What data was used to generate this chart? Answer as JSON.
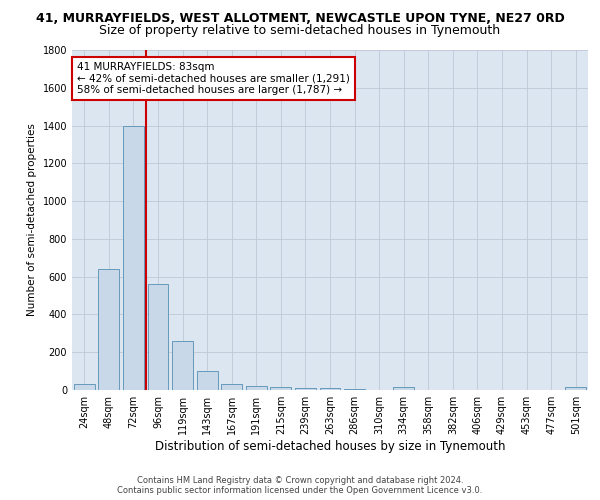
{
  "title": "41, MURRAYFIELDS, WEST ALLOTMENT, NEWCASTLE UPON TYNE, NE27 0RD",
  "subtitle": "Size of property relative to semi-detached houses in Tynemouth",
  "xlabel": "Distribution of semi-detached houses by size in Tynemouth",
  "ylabel": "Number of semi-detached properties",
  "categories": [
    "24sqm",
    "48sqm",
    "72sqm",
    "96sqm",
    "119sqm",
    "143sqm",
    "167sqm",
    "191sqm",
    "215sqm",
    "239sqm",
    "263sqm",
    "286sqm",
    "310sqm",
    "334sqm",
    "358sqm",
    "382sqm",
    "406sqm",
    "429sqm",
    "453sqm",
    "477sqm",
    "501sqm"
  ],
  "values": [
    30,
    640,
    1400,
    560,
    260,
    100,
    30,
    20,
    15,
    10,
    8,
    5,
    0,
    15,
    0,
    0,
    0,
    0,
    0,
    0,
    15
  ],
  "bar_color": "#c8d8e8",
  "bar_edge_color": "#6699bb",
  "vline_color": "#cc0000",
  "annotation_text": "41 MURRAYFIELDS: 83sqm\n← 42% of semi-detached houses are smaller (1,291)\n58% of semi-detached houses are larger (1,787) →",
  "annotation_box_color": "#ffffff",
  "annotation_box_edge": "#cc0000",
  "ylim": [
    0,
    1800
  ],
  "yticks": [
    0,
    200,
    400,
    600,
    800,
    1000,
    1200,
    1400,
    1600,
    1800
  ],
  "grid_color": "#c0c8d8",
  "bg_color": "#dce6f0",
  "footer": "Contains HM Land Registry data © Crown copyright and database right 2024.\nContains public sector information licensed under the Open Government Licence v3.0.",
  "title_fontsize": 9,
  "subtitle_fontsize": 9,
  "tick_fontsize": 7,
  "ylabel_fontsize": 7.5,
  "xlabel_fontsize": 8.5,
  "annotation_fontsize": 7.5,
  "footer_fontsize": 6
}
